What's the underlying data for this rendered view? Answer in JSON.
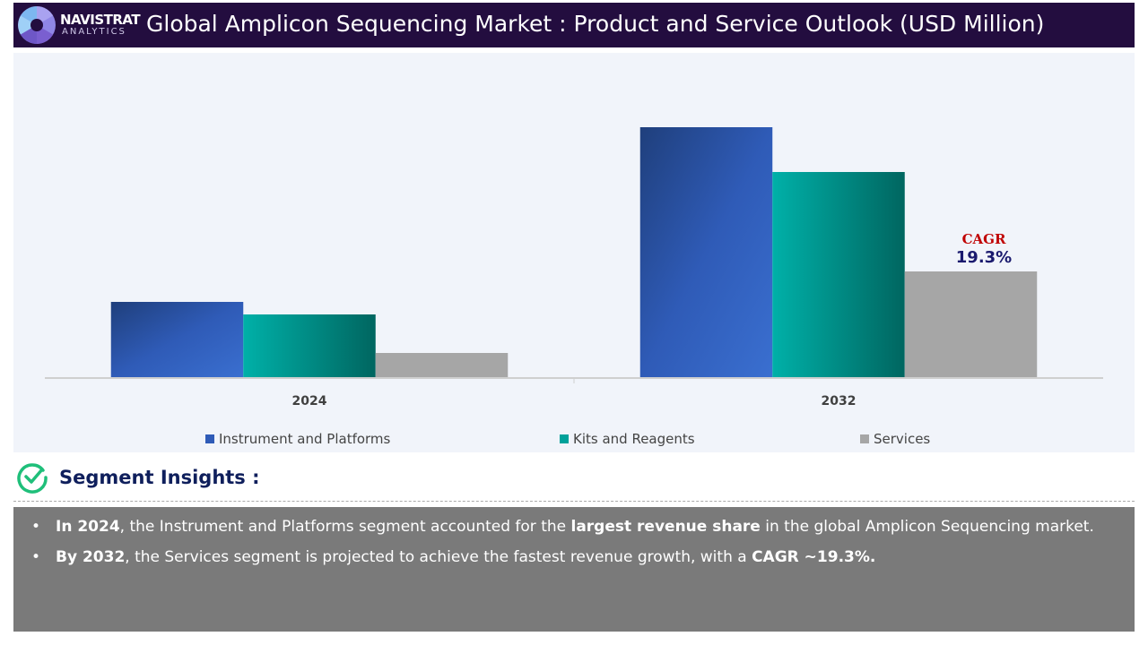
{
  "header": {
    "brand": "NAVISTRAT",
    "brand_sub": "ANALYTICS",
    "title": "Global Amplicon Sequencing Market : Product and Service Outlook (USD Million)"
  },
  "chart_data": {
    "type": "bar",
    "categories": [
      "2024",
      "2032"
    ],
    "series": [
      {
        "name": "Instrument and Platforms",
        "values": [
          84,
          279
        ],
        "color": "#2f5bb7"
      },
      {
        "name": "Kits and Reagents",
        "values": [
          70,
          229
        ],
        "color": "#00a19a"
      },
      {
        "name": "Services",
        "values": [
          27,
          118
        ],
        "color": "#a6a6a6"
      }
    ],
    "ylim": [
      0,
      300
    ],
    "grid": false,
    "legend": "bottom",
    "annotation": {
      "label": "CAGR",
      "value": "19.3%"
    }
  },
  "insights": {
    "title": "Segment Insights :",
    "items": [
      {
        "b1": "In 2024",
        "t1": ", the Instrument and Platforms segment accounted for the ",
        "b2": "largest revenue share",
        "t2": " in the global Amplicon Sequencing market."
      },
      {
        "b1": "By 2032",
        "t1": ", the Services segment is projected to achieve the fastest revenue growth, with a ",
        "b2": "CAGR ~19.3%.",
        "t2": ""
      }
    ]
  }
}
